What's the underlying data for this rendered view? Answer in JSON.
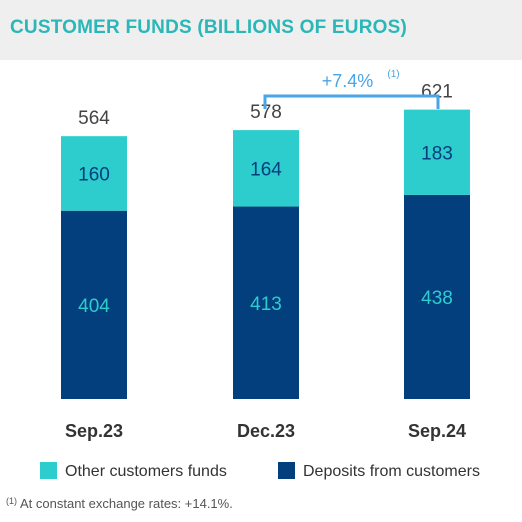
{
  "title": "CUSTOMER FUNDS (BILLIONS OF EUROS)",
  "chart_data": {
    "type": "bar",
    "stacked": true,
    "categories": [
      "Sep.23",
      "Dec.23",
      "Sep.24"
    ],
    "series": [
      {
        "name": "Deposits from customers",
        "values": [
          404,
          413,
          438
        ],
        "color": "#043f7d",
        "label_color": "#2dcccd"
      },
      {
        "name": "Other customers funds",
        "values": [
          160,
          164,
          183
        ],
        "color": "#2dcccd",
        "label_color": "#043f7d"
      }
    ],
    "totals": [
      564,
      578,
      621
    ],
    "ylim": [
      0,
      700
    ],
    "grid": false,
    "legend_position": "bottom",
    "annotation": {
      "text": "+7.4%",
      "note_marker": "(1)",
      "from": "Dec.23",
      "to": "Sep.24",
      "color": "#49a5e6"
    }
  },
  "footnote": {
    "marker": "(1)",
    "text": "At constant exchange rates: +14.1%."
  }
}
